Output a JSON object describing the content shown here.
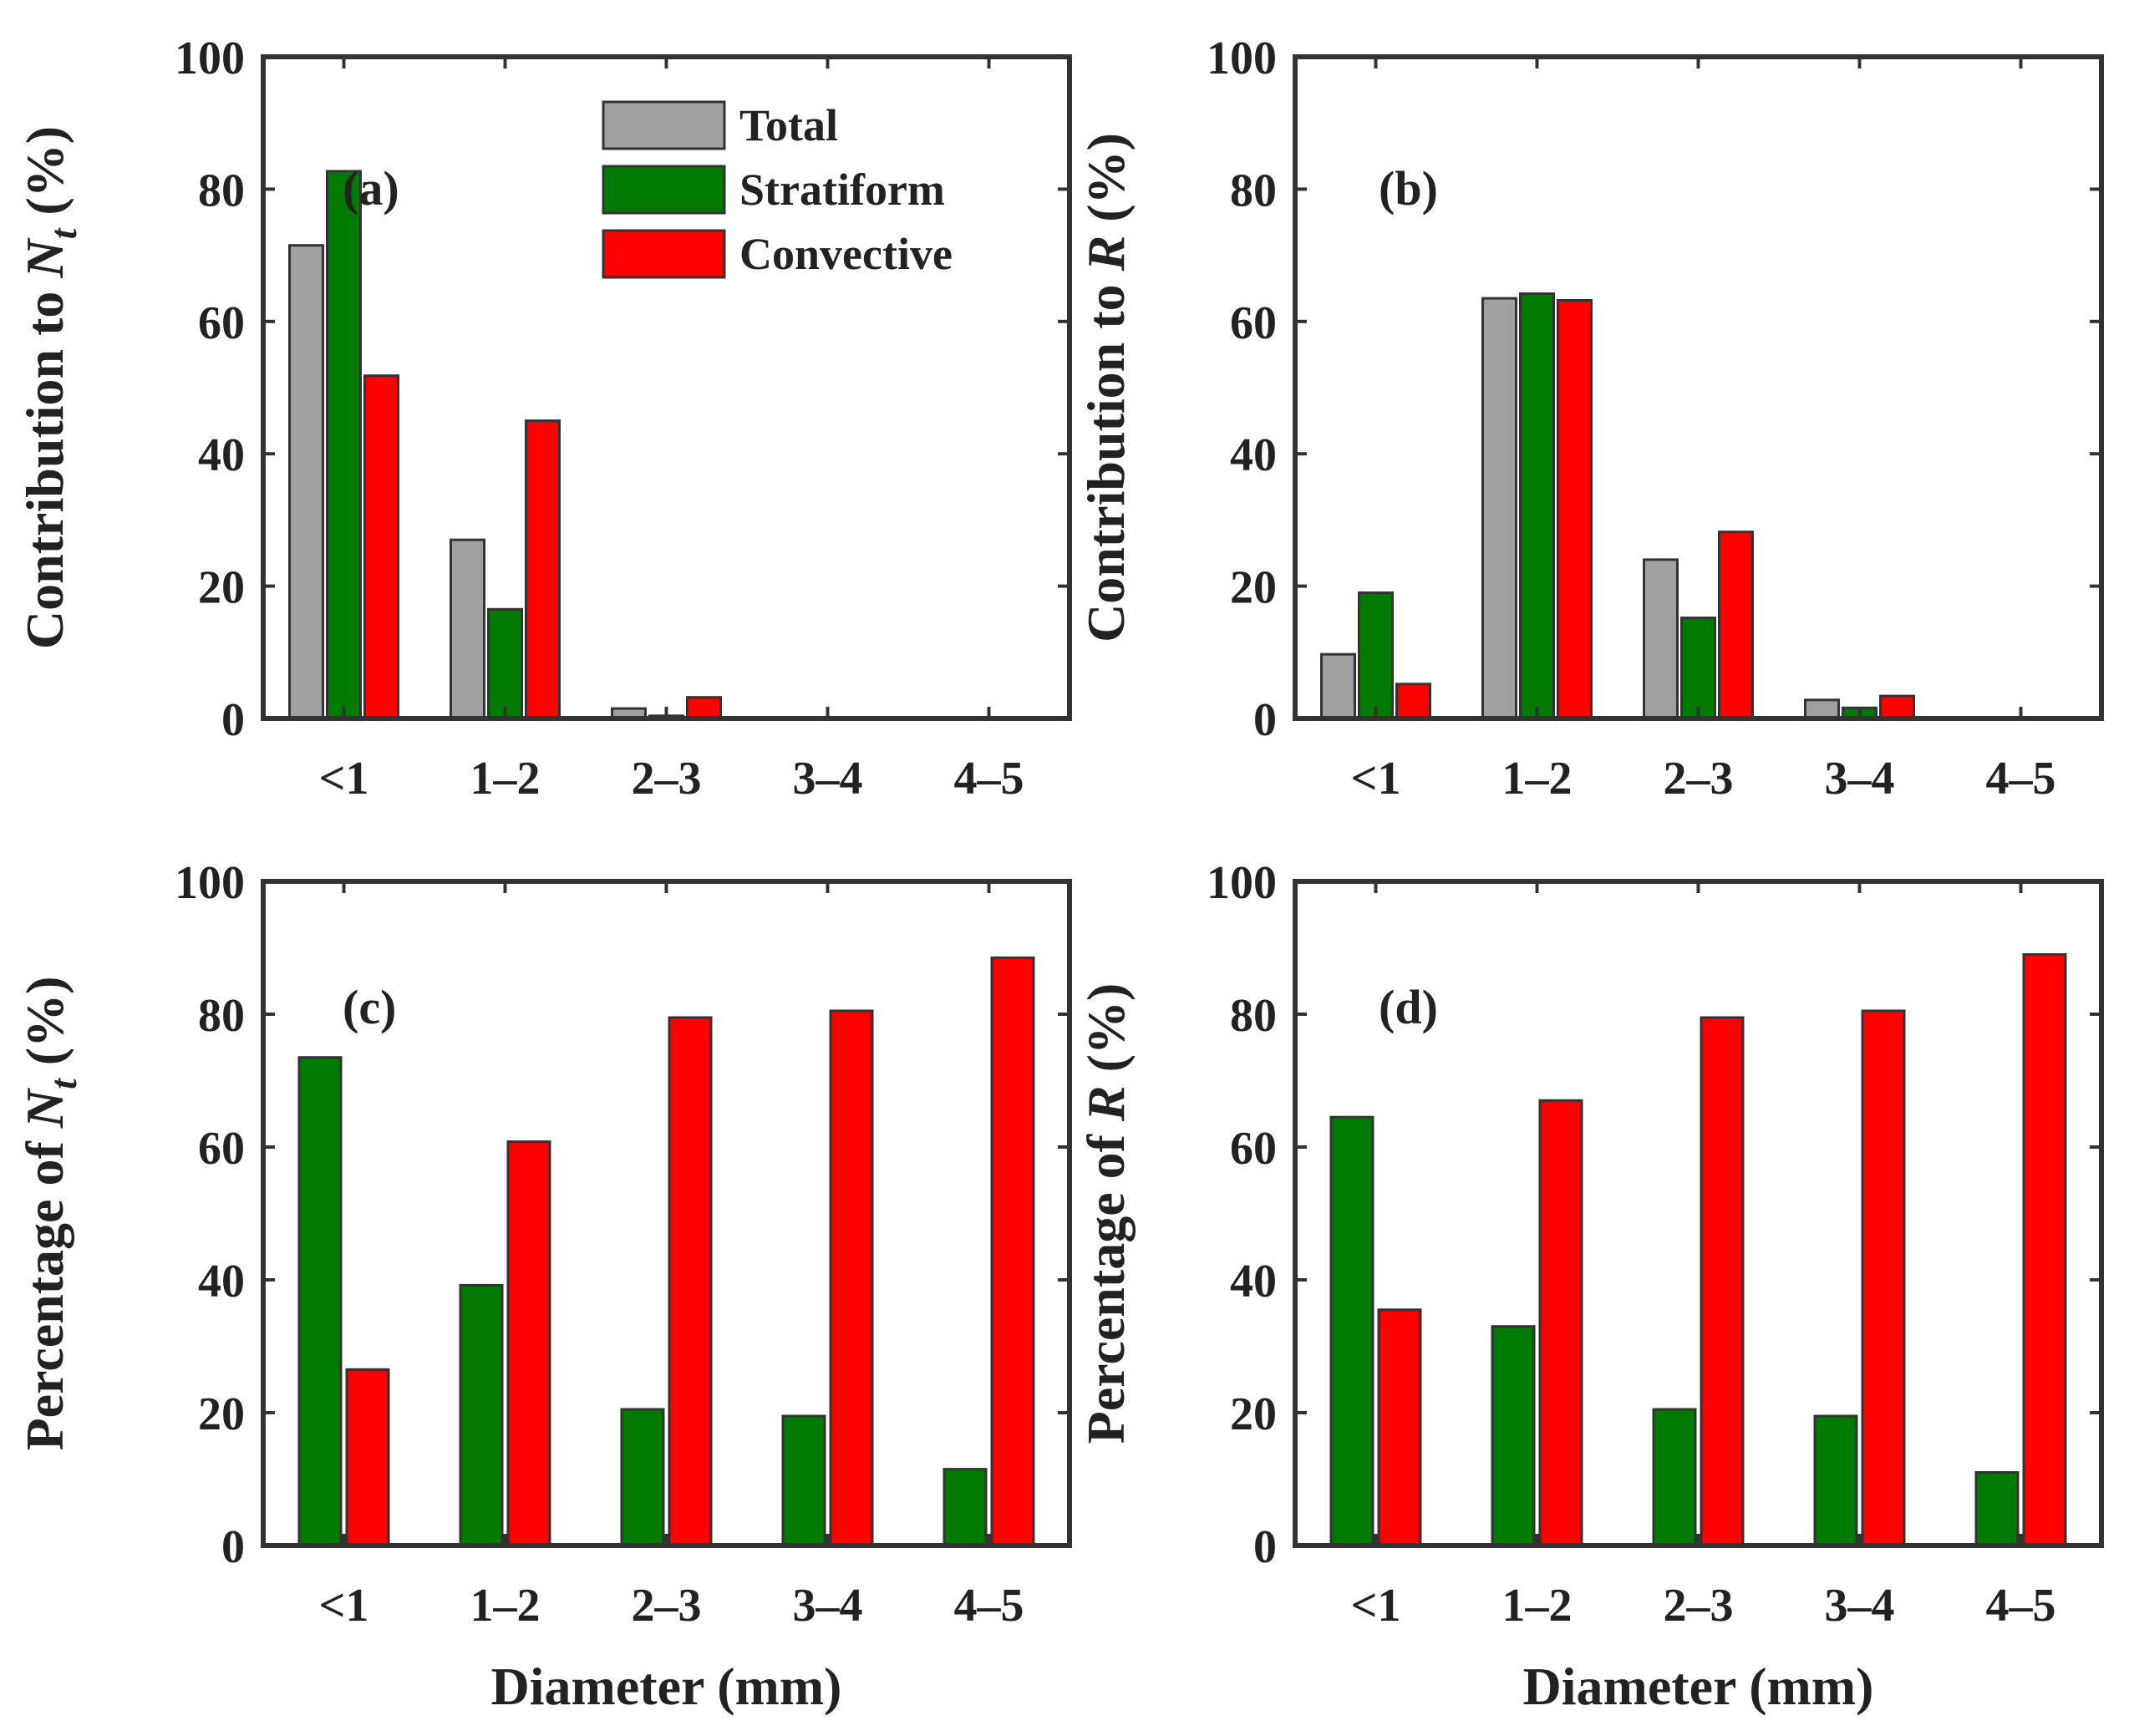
{
  "chart_data": [
    {
      "panel": "(a)",
      "type": "bar",
      "categories": [
        "<1",
        "1–2",
        "2–3",
        "3–4",
        "4–5"
      ],
      "series": [
        {
          "name": "Total",
          "values": [
            71.5,
            27,
            1.5,
            0,
            0
          ]
        },
        {
          "name": "Stratiform",
          "values": [
            82.7,
            16.5,
            0.4,
            0,
            0
          ]
        },
        {
          "name": "Convective",
          "values": [
            51.8,
            45,
            3.2,
            0,
            0
          ]
        }
      ],
      "ylabel": {
        "pre": "Contribution to ",
        "var": "N",
        "sub": "t",
        "post": " (%)"
      },
      "xlabel": "",
      "ylim": [
        0,
        100
      ],
      "yticks": [
        0,
        20,
        40,
        60,
        80,
        100
      ],
      "legend": {
        "placement": "top-right",
        "entries": [
          "Total",
          "Stratiform",
          "Convective"
        ]
      }
    },
    {
      "panel": "(b)",
      "type": "bar",
      "categories": [
        "<1",
        "1–2",
        "2–3",
        "3–4",
        "4–5"
      ],
      "series": [
        {
          "name": "Total",
          "values": [
            9.7,
            63.5,
            24,
            2.8,
            0
          ]
        },
        {
          "name": "Stratiform",
          "values": [
            19,
            64.2,
            15.2,
            1.6,
            0
          ]
        },
        {
          "name": "Convective",
          "values": [
            5.2,
            63.2,
            28.2,
            3.4,
            0
          ]
        }
      ],
      "ylabel": {
        "pre": "Contribution to ",
        "var": "R",
        "sub": "",
        "post": " (%)"
      },
      "xlabel": "",
      "ylim": [
        0,
        100
      ],
      "yticks": [
        0,
        20,
        40,
        60,
        80,
        100
      ]
    },
    {
      "panel": "(c)",
      "type": "bar",
      "categories": [
        "<1",
        "1–2",
        "2–3",
        "3–4",
        "4–5"
      ],
      "series": [
        {
          "name": "Stratiform",
          "values": [
            73.5,
            39.2,
            20.5,
            19.5,
            11.5
          ]
        },
        {
          "name": "Convective",
          "values": [
            26.5,
            60.8,
            79.5,
            80.5,
            88.5
          ]
        }
      ],
      "ylabel": {
        "pre": "Percentage of ",
        "var": "N",
        "sub": "t",
        "post": " (%)"
      },
      "xlabel": "Diameter (mm)",
      "ylim": [
        0,
        100
      ],
      "yticks": [
        0,
        20,
        40,
        60,
        80,
        100
      ]
    },
    {
      "panel": "(d)",
      "type": "bar",
      "categories": [
        "<1",
        "1–2",
        "2–3",
        "3–4",
        "4–5"
      ],
      "series": [
        {
          "name": "Stratiform",
          "values": [
            64.5,
            33,
            20.5,
            19.5,
            11
          ]
        },
        {
          "name": "Convective",
          "values": [
            35.5,
            67,
            79.5,
            80.5,
            89
          ]
        }
      ],
      "ylabel": {
        "pre": "Percentage of ",
        "var": "R",
        "sub": "",
        "post": " (%)"
      },
      "xlabel": "Diameter (mm)",
      "ylim": [
        0,
        100
      ],
      "yticks": [
        0,
        20,
        40,
        60,
        80,
        100
      ]
    }
  ],
  "colors": {
    "Total": "#a0a0a0",
    "Stratiform": "#007a00",
    "Convective": "#ff0000"
  }
}
